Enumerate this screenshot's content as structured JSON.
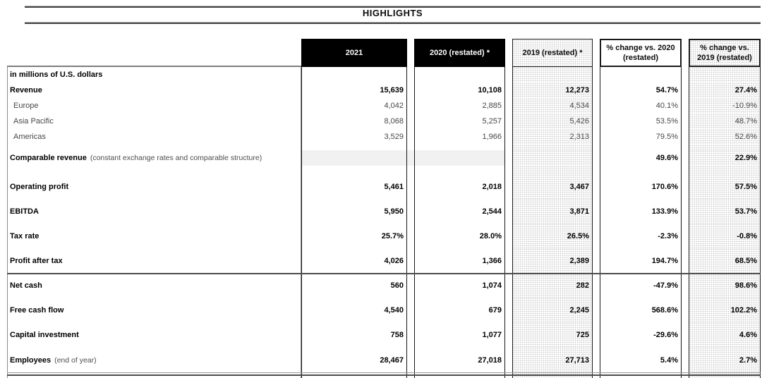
{
  "title": "HIGHLIGHTS",
  "colors": {
    "header_box": "#000000",
    "header_text": "#ffffff",
    "dotted_column_fill": "#efefef",
    "comparable_band": "#f1f1f1",
    "rule": "#454545"
  },
  "table": {
    "columns": [
      {
        "id": "2021",
        "lines": [
          "2021"
        ]
      },
      {
        "id": "2020",
        "lines": [
          "2020 (restated) *"
        ]
      },
      {
        "id": "2019",
        "lines": [
          "2019 (restated) *"
        ]
      },
      {
        "id": "pct-2020",
        "lines": [
          "% change vs. 2020",
          "(restated)"
        ]
      },
      {
        "id": "pct-2019",
        "lines": [
          "% change vs.",
          "2019 (restated)"
        ]
      }
    ],
    "rows": [
      {
        "type": "unit",
        "label": "in millions of U.S. dollars",
        "suffix": "",
        "values": [
          "",
          "",
          "",
          "",
          ""
        ]
      },
      {
        "type": "data-s",
        "label": "Revenue",
        "suffix": "",
        "values": [
          "15,639",
          "10,108",
          "12,273",
          "54.7%",
          "27.4%"
        ]
      },
      {
        "type": "sub",
        "label": "Europe",
        "suffix": "",
        "values": [
          "4,042",
          "2,885",
          "4,534",
          "40.1%",
          "-10.9%"
        ]
      },
      {
        "type": "sub",
        "label": "Asia Pacific",
        "suffix": "",
        "values": [
          "8,068",
          "5,257",
          "5,426",
          "53.5%",
          "48.7%"
        ]
      },
      {
        "type": "sub",
        "label": "Americas",
        "suffix": "",
        "values": [
          "3,529",
          "1,966",
          "2,313",
          "79.5%",
          "52.6%"
        ]
      },
      {
        "type": "spacer8",
        "label": "",
        "suffix": "",
        "values": [
          "",
          "",
          "",
          "",
          ""
        ]
      },
      {
        "type": "band",
        "label": "Comparable revenue",
        "suffix": "(constant exchange rates and comparable structure)",
        "values": [
          "",
          "",
          "",
          "49.6%",
          "22.9%"
        ]
      },
      {
        "type": "spacer12",
        "label": "",
        "suffix": "",
        "values": [
          "",
          "",
          "",
          "",
          ""
        ]
      },
      {
        "type": "data-m",
        "label": "Operating profit",
        "suffix": "",
        "values": [
          "5,461",
          "2,018",
          "3,467",
          "170.6%",
          "57.5%"
        ]
      },
      {
        "type": "data-m",
        "label": "EBITDA",
        "suffix": "",
        "values": [
          "5,950",
          "2,544",
          "3,871",
          "133.9%",
          "53.7%"
        ]
      },
      {
        "type": "data-m",
        "label": "Tax rate",
        "suffix": "",
        "values": [
          "25.7%",
          "28.0%",
          "26.5%",
          "-2.3%",
          "-0.8%"
        ]
      },
      {
        "type": "data-m",
        "label": "Profit after tax",
        "suffix": "",
        "values": [
          "4,026",
          "1,366",
          "2,389",
          "194.7%",
          "68.5%"
        ]
      },
      {
        "type": "data-m",
        "label": "Net cash",
        "suffix": "",
        "values": [
          "560",
          "1,074",
          "282",
          "-47.9%",
          "98.6%"
        ]
      },
      {
        "type": "data-m",
        "label": "Free cash flow",
        "suffix": "",
        "values": [
          "4,540",
          "679",
          "2,245",
          "568.6%",
          "102.2%"
        ]
      },
      {
        "type": "data-m",
        "label": "Capital investment",
        "suffix": "",
        "values": [
          "758",
          "1,077",
          "725",
          "-29.6%",
          "4.6%"
        ]
      },
      {
        "type": "data-l",
        "label": "Employees",
        "suffix": "(end of year)",
        "values": [
          "28,467",
          "27,018",
          "27,713",
          "5.4%",
          "2.7%"
        ]
      },
      {
        "type": "stub",
        "label": "",
        "suffix": "",
        "values": [
          "",
          "",
          "",
          "",
          ""
        ]
      }
    ]
  }
}
